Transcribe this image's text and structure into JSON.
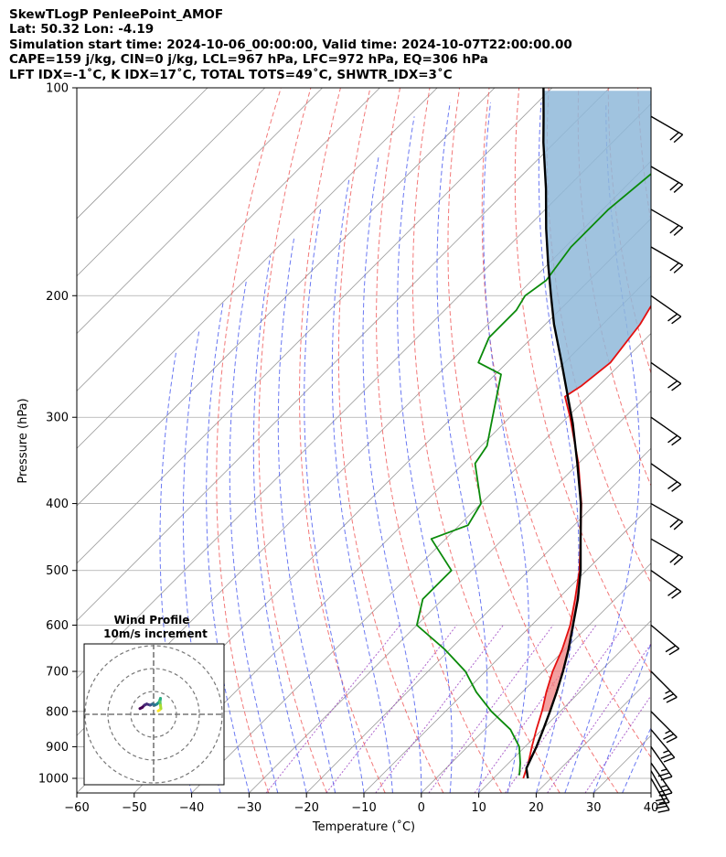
{
  "header": {
    "line1": "SkewTLogP PenleePoint_AMOF",
    "line2": "Lat: 50.32   Lon: -4.19",
    "line3": "Simulation start time: 2024-10-06_00:00:00, Valid time: 2024-10-07T22:00:00.00",
    "line4": "CAPE=159 j/kg, CIN=0 j/kg, LCL=967 hPa, LFC=972 hPa, EQ=306 hPa",
    "line5": "LFT IDX=-1˚C, K IDX=17˚C, TOTAL TOTS=49˚C, SHWTR_IDX=3˚C"
  },
  "colors": {
    "temperature": "#e41010",
    "dewpoint": "#0a8a0a",
    "parcel": "#000000",
    "cape_fill": "#8fb9d9",
    "cin_fill": "#f08080",
    "dry_adiabat": "#f06060",
    "moist_adiabat": "#5060f0",
    "mixing_ratio": "#9a40c0",
    "isotherm": "#999999",
    "isobar": "#aaaaaa"
  },
  "chart_data": {
    "type": "line",
    "subtype": "skew-t log-p",
    "xlabel": "Temperature (˚C)",
    "ylabel": "Pressure (hPa)",
    "xlim": [
      -60,
      40
    ],
    "ylim": [
      1050,
      100
    ],
    "y_scale": "log",
    "x_ticks": [
      -60,
      -50,
      -40,
      -30,
      -20,
      -10,
      0,
      10,
      20,
      30,
      40
    ],
    "x_tick_labels": [
      "−60",
      "−50",
      "−40",
      "−30",
      "−20",
      "−10",
      "0",
      "10",
      "20",
      "30",
      "40"
    ],
    "y_ticks": [
      1000,
      900,
      800,
      700,
      600,
      500,
      400,
      300,
      200,
      100
    ],
    "y_tick_labels": [
      "1000",
      "900",
      "800",
      "700",
      "600",
      "500",
      "400",
      "300",
      "200",
      "100"
    ],
    "grid": true,
    "series": [
      {
        "key": "temperature",
        "pressure": [
          1000,
          950,
          900,
          850,
          800,
          750,
          700,
          650,
          600,
          550,
          500,
          450,
          400,
          350,
          300,
          280,
          270,
          250,
          220,
          200,
          180,
          160,
          140,
          120,
          110,
          100
        ],
        "values": [
          15.2,
          13.4,
          11.2,
          9.0,
          6.8,
          4.2,
          1.7,
          -0.5,
          -3.3,
          -7.0,
          -11.2,
          -16.5,
          -22.5,
          -30.0,
          -39.5,
          -44.0,
          -43.0,
          -42.0,
          -43.5,
          -45.5,
          -49.5,
          -52.5,
          -55.0,
          -58.5,
          -59.5,
          -60.5
        ]
      },
      {
        "key": "dewpoint",
        "pressure": [
          990,
          950,
          900,
          850,
          800,
          750,
          700,
          650,
          600,
          550,
          500,
          450,
          430,
          400,
          350,
          330,
          300,
          260,
          250,
          230,
          210,
          200,
          190,
          170,
          150,
          130,
          110,
          100
        ],
        "values": [
          14.0,
          12.0,
          9.0,
          4.5,
          -2.0,
          -8.0,
          -13.5,
          -21.0,
          -30.0,
          -33.5,
          -33.5,
          -42.5,
          -38.5,
          -40.0,
          -48.0,
          -49.0,
          -53.0,
          -59.0,
          -65.0,
          -67.5,
          -67.5,
          -68.5,
          -67.5,
          -69.0,
          -69.0,
          -67.5,
          -66.5,
          -65.5
        ]
      },
      {
        "key": "parcel",
        "pressure": [
          1000,
          967,
          950,
          900,
          850,
          800,
          750,
          700,
          650,
          600,
          550,
          500,
          450,
          400,
          350,
          306,
          280,
          250,
          220,
          200,
          180,
          160,
          140,
          120,
          110,
          100
        ],
        "values": [
          16.0,
          14.0,
          13.5,
          12.0,
          10.2,
          8.2,
          6.0,
          3.5,
          0.6,
          -2.8,
          -6.5,
          -11.0,
          -16.5,
          -22.6,
          -30.2,
          -38.0,
          -43.5,
          -50.5,
          -58.5,
          -64.0,
          -70.0,
          -76.5,
          -83.5,
          -92.0,
          -96.5,
          -101.5
        ]
      }
    ],
    "cape_layer_top_hPa": 306,
    "inset": {
      "title_line1": "Wind Profile",
      "title_line2": "10m/s increment",
      "wind_hodograph": [
        {
          "u": -6.0,
          "v": 2.5
        },
        {
          "u": -5.0,
          "v": 3.0
        },
        {
          "u": -4.0,
          "v": 4.0
        },
        {
          "u": -3.0,
          "v": 4.5
        },
        {
          "u": -1.5,
          "v": 4.0
        },
        {
          "u": -0.5,
          "v": 4.5
        },
        {
          "u": 0.5,
          "v": 4.0
        },
        {
          "u": 1.5,
          "v": 4.5
        },
        {
          "u": 2.5,
          "v": 5.5
        },
        {
          "u": 3.0,
          "v": 7.0
        },
        {
          "u": 2.8,
          "v": 5.5
        },
        {
          "u": 3.0,
          "v": 4.0
        },
        {
          "u": 3.2,
          "v": 2.5
        },
        {
          "u": 2.5,
          "v": 1.8
        },
        {
          "u": 2.0,
          "v": 1.5
        }
      ]
    },
    "wind_barbs": [
      {
        "pressure": 1000,
        "speed_kt": 25,
        "dir_deg": 210
      },
      {
        "pressure": 975,
        "speed_kt": 25,
        "dir_deg": 210
      },
      {
        "pressure": 950,
        "speed_kt": 25,
        "dir_deg": 215
      },
      {
        "pressure": 900,
        "speed_kt": 25,
        "dir_deg": 215
      },
      {
        "pressure": 850,
        "speed_kt": 25,
        "dir_deg": 220
      },
      {
        "pressure": 800,
        "speed_kt": 25,
        "dir_deg": 225
      },
      {
        "pressure": 700,
        "speed_kt": 25,
        "dir_deg": 225
      },
      {
        "pressure": 600,
        "speed_kt": 20,
        "dir_deg": 230
      },
      {
        "pressure": 500,
        "speed_kt": 20,
        "dir_deg": 235
      },
      {
        "pressure": 450,
        "speed_kt": 20,
        "dir_deg": 240
      },
      {
        "pressure": 400,
        "speed_kt": 20,
        "dir_deg": 240
      },
      {
        "pressure": 350,
        "speed_kt": 20,
        "dir_deg": 235
      },
      {
        "pressure": 300,
        "speed_kt": 20,
        "dir_deg": 235
      },
      {
        "pressure": 250,
        "speed_kt": 20,
        "dir_deg": 235
      },
      {
        "pressure": 200,
        "speed_kt": 20,
        "dir_deg": 235
      },
      {
        "pressure": 170,
        "speed_kt": 20,
        "dir_deg": 240
      },
      {
        "pressure": 150,
        "speed_kt": 20,
        "dir_deg": 240
      },
      {
        "pressure": 130,
        "speed_kt": 20,
        "dir_deg": 240
      },
      {
        "pressure": 110,
        "speed_kt": 20,
        "dir_deg": 240
      }
    ]
  }
}
